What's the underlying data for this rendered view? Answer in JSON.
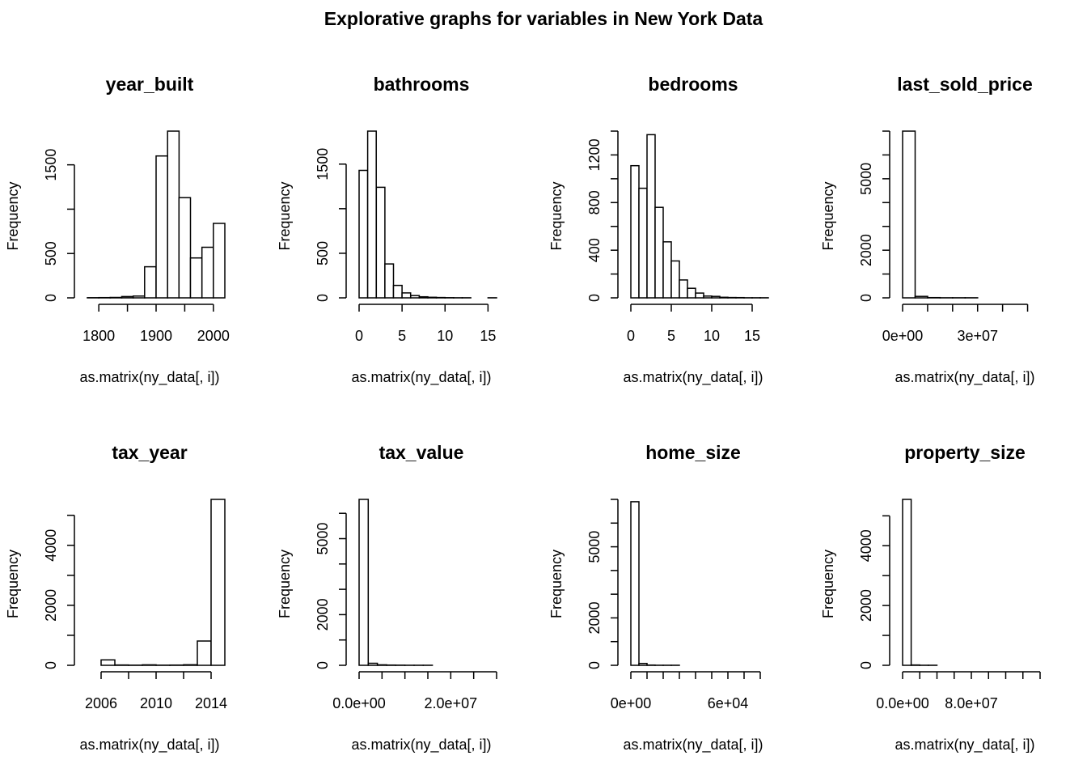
{
  "title": "Explorative graphs for variables in New York Data",
  "chart_data": [
    {
      "type": "bar",
      "title": "year_built",
      "xlabel": "as.matrix(ny_data[, i])",
      "ylabel": "Frequency",
      "bin_edges": [
        1780,
        1800,
        1820,
        1840,
        1860,
        1880,
        1900,
        1920,
        1940,
        1960,
        1980,
        2000,
        2020
      ],
      "values": [
        2,
        3,
        5,
        15,
        20,
        350,
        1600,
        1880,
        1130,
        450,
        570,
        840
      ],
      "xlim": [
        1780,
        2020
      ],
      "xticks": [
        1800,
        1850,
        1900,
        1950,
        2000
      ],
      "xtick_labels": [
        "1800",
        "",
        "1900",
        "",
        "2000"
      ],
      "yticks": [
        0,
        500,
        1000,
        1500
      ],
      "ytick_labels": [
        "0",
        "500",
        "",
        "1500"
      ],
      "ylim": [
        0,
        1880
      ]
    },
    {
      "type": "bar",
      "title": "bathrooms",
      "xlabel": "as.matrix(ny_data[, i])",
      "ylabel": "Frequency",
      "bin_edges": [
        0,
        1,
        2,
        3,
        4,
        5,
        6,
        7,
        8,
        9,
        10,
        11,
        12,
        13,
        14,
        15,
        16
      ],
      "values": [
        1430,
        1870,
        1240,
        380,
        140,
        55,
        25,
        12,
        6,
        4,
        2,
        1,
        1,
        0,
        0,
        1
      ],
      "xlim": [
        0,
        16
      ],
      "xticks": [
        0,
        5,
        10,
        15
      ],
      "xtick_labels": [
        "0",
        "5",
        "10",
        "15"
      ],
      "yticks": [
        0,
        500,
        1000,
        1500
      ],
      "ytick_labels": [
        "0",
        "500",
        "",
        "1500"
      ],
      "ylim": [
        0,
        1870
      ]
    },
    {
      "type": "bar",
      "title": "bedrooms",
      "xlabel": "as.matrix(ny_data[, i])",
      "ylabel": "Frequency",
      "bin_edges": [
        0,
        1,
        2,
        3,
        4,
        5,
        6,
        7,
        8,
        9,
        10,
        11,
        12,
        13,
        14,
        15,
        16,
        17
      ],
      "values": [
        1110,
        920,
        1370,
        760,
        470,
        310,
        150,
        80,
        40,
        15,
        12,
        5,
        3,
        2,
        1,
        1,
        1
      ],
      "xlim": [
        0,
        17
      ],
      "xticks": [
        0,
        5,
        10,
        15
      ],
      "xtick_labels": [
        "0",
        "5",
        "10",
        "15"
      ],
      "yticks": [
        0,
        200,
        400,
        600,
        800,
        1000,
        1200,
        1400
      ],
      "ytick_labels": [
        "0",
        "",
        "400",
        "",
        "800",
        "",
        "1200",
        ""
      ],
      "ylim": [
        0,
        1400
      ]
    },
    {
      "type": "bar",
      "title": "last_sold_price",
      "xlabel": "as.matrix(ny_data[, i])",
      "ylabel": "Frequency",
      "bin_edges": [
        0,
        5000000,
        10000000,
        15000000,
        20000000,
        25000000,
        30000000,
        35000000,
        40000000,
        45000000,
        50000000,
        55000000
      ],
      "values": [
        7000,
        60,
        10,
        5,
        3,
        2,
        1,
        1,
        1,
        0,
        1
      ],
      "xlim": [
        0,
        55000000
      ],
      "xticks": [
        0,
        10000000,
        20000000,
        30000000,
        40000000,
        50000000
      ],
      "xtick_labels": [
        "0e+00",
        "",
        "",
        "3e+07",
        "",
        ""
      ],
      "yticks": [
        0,
        1000,
        2000,
        3000,
        4000,
        5000,
        6000,
        7000
      ],
      "ytick_labels": [
        "0",
        "",
        "2000",
        "",
        "",
        "5000",
        "",
        ""
      ],
      "ylim": [
        0,
        7000
      ]
    },
    {
      "type": "bar",
      "title": "tax_year",
      "xlabel": "as.matrix(ny_data[, i])",
      "ylabel": "Frequency",
      "bin_edges": [
        2005,
        2006,
        2007,
        2008,
        2009,
        2010,
        2011,
        2012,
        2013,
        2014,
        2015
      ],
      "values": [
        0,
        180,
        10,
        5,
        15,
        5,
        8,
        20,
        810,
        5530
      ],
      "xlim": [
        2005,
        2015
      ],
      "xticks": [
        2006,
        2008,
        2010,
        2012,
        2014
      ],
      "xtick_labels": [
        "2006",
        "",
        "2010",
        "",
        "2014"
      ],
      "yticks": [
        0,
        1000,
        2000,
        3000,
        4000,
        5000
      ],
      "ytick_labels": [
        "0",
        "",
        "2000",
        "",
        "4000",
        ""
      ],
      "ylim": [
        0,
        5530
      ]
    },
    {
      "type": "bar",
      "title": "tax_value",
      "xlabel": "as.matrix(ny_data[, i])",
      "ylabel": "Frequency",
      "bin_edges": [
        0,
        2000000,
        4000000,
        6000000,
        8000000,
        10000000,
        12000000,
        14000000,
        16000000,
        18000000,
        20000000,
        22000000,
        24000000,
        26000000,
        28000000,
        30000000
      ],
      "values": [
        6550,
        80,
        20,
        8,
        5,
        3,
        2,
        2,
        1,
        1,
        1,
        1,
        0,
        0,
        1
      ],
      "xlim": [
        0,
        30000000
      ],
      "xticks": [
        0,
        5000000,
        10000000,
        15000000,
        20000000,
        25000000,
        30000000
      ],
      "xtick_labels": [
        "0.0e+00",
        "",
        "",
        "",
        "2.0e+07",
        "",
        ""
      ],
      "yticks": [
        0,
        1000,
        2000,
        3000,
        4000,
        5000,
        6000
      ],
      "ytick_labels": [
        "0",
        "",
        "2000",
        "",
        "",
        "5000",
        ""
      ],
      "ylim": [
        0,
        6550
      ]
    },
    {
      "type": "bar",
      "title": "home_size",
      "xlabel": "as.matrix(ny_data[, i])",
      "ylabel": "Frequency",
      "bin_edges": [
        0,
        5000,
        10000,
        15000,
        20000,
        25000,
        30000,
        35000,
        40000,
        45000,
        50000,
        55000,
        60000,
        65000,
        70000,
        75000,
        80000,
        85000
      ],
      "values": [
        6900,
        80,
        10,
        5,
        3,
        2,
        1,
        1,
        1,
        1,
        0,
        0,
        0,
        0,
        0,
        0,
        1
      ],
      "xlim": [
        0,
        85000
      ],
      "xticks": [
        0,
        10000,
        20000,
        30000,
        40000,
        50000,
        60000,
        70000,
        80000
      ],
      "xtick_labels": [
        "0e+00",
        "",
        "",
        "",
        "",
        "",
        "6e+04",
        "",
        ""
      ],
      "yticks": [
        0,
        1000,
        2000,
        3000,
        4000,
        5000,
        6000,
        7000
      ],
      "ytick_labels": [
        "0",
        "",
        "2000",
        "",
        "",
        "5000",
        "",
        ""
      ],
      "ylim": [
        0,
        7000
      ]
    },
    {
      "type": "bar",
      "title": "property_size",
      "xlabel": "as.matrix(ny_data[, i])",
      "ylabel": "Frequency",
      "bin_edges": [
        0,
        10000000,
        20000000,
        30000000,
        40000000,
        50000000,
        60000000,
        70000000,
        80000000,
        90000000,
        100000000,
        110000000,
        120000000,
        130000000,
        140000000,
        150000000,
        160000000
      ],
      "values": [
        5550,
        10,
        3,
        2,
        1,
        1,
        1,
        0,
        0,
        0,
        0,
        0,
        0,
        0,
        0,
        1
      ],
      "xlim": [
        0,
        160000000
      ],
      "xticks": [
        0,
        20000000,
        40000000,
        60000000,
        80000000,
        100000000,
        120000000,
        140000000,
        160000000
      ],
      "xtick_labels": [
        "0.0e+00",
        "",
        "",
        "",
        "8.0e+07",
        "",
        "",
        "",
        ""
      ],
      "yticks": [
        0,
        1000,
        2000,
        3000,
        4000,
        5000
      ],
      "ytick_labels": [
        "0",
        "",
        "2000",
        "",
        "4000",
        ""
      ],
      "ylim": [
        0,
        5550
      ]
    }
  ]
}
